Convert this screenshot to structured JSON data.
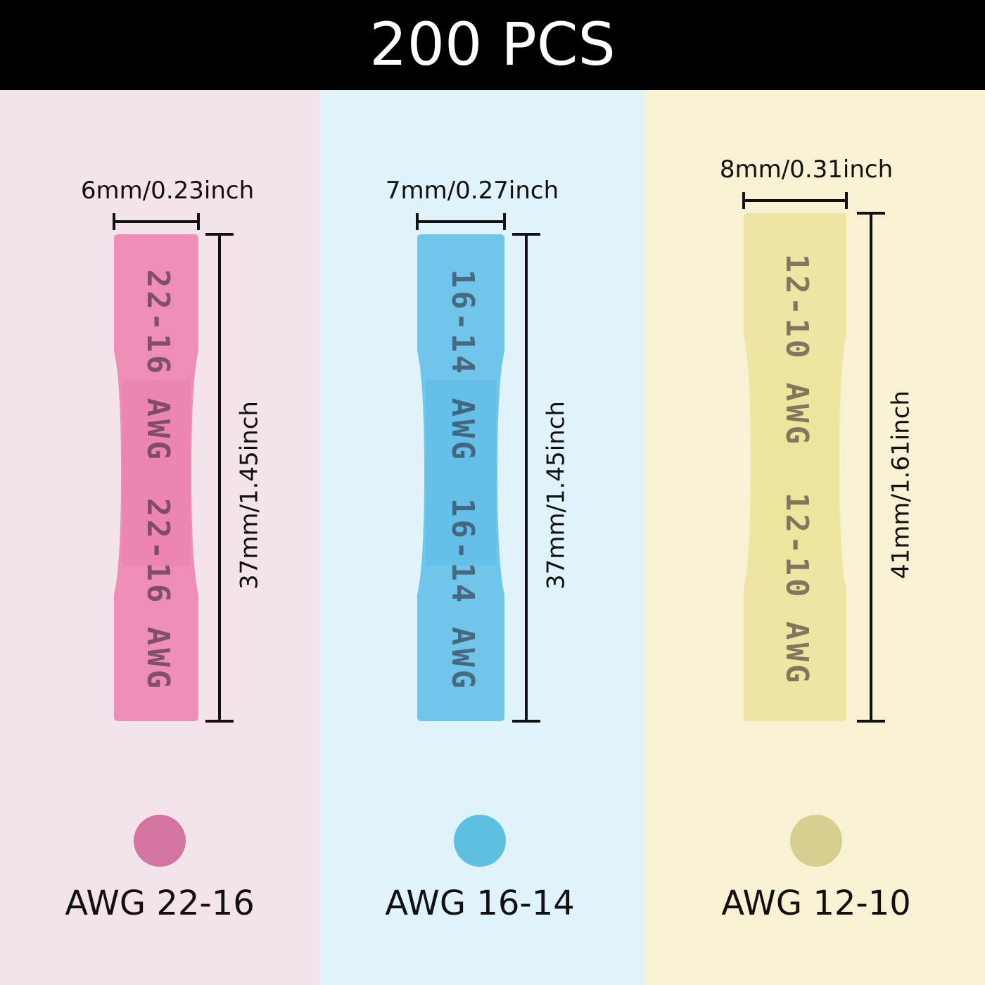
{
  "header": {
    "title": "200 PCS"
  },
  "panels": [
    {
      "width_label": "6mm/0.23inch",
      "length_label": "37mm/1.45inch",
      "imprint": "22-16 AWG",
      "label": "AWG 22-16"
    },
    {
      "width_label": "7mm/0.27inch",
      "length_label": "37mm/1.45inch",
      "imprint": "16-14 AWG",
      "label": "AWG 16-14"
    },
    {
      "width_label": "8mm/0.31inch",
      "length_label": "41mm/1.61inch",
      "imprint": "12-10 AWG",
      "label": "AWG 12-10"
    }
  ]
}
